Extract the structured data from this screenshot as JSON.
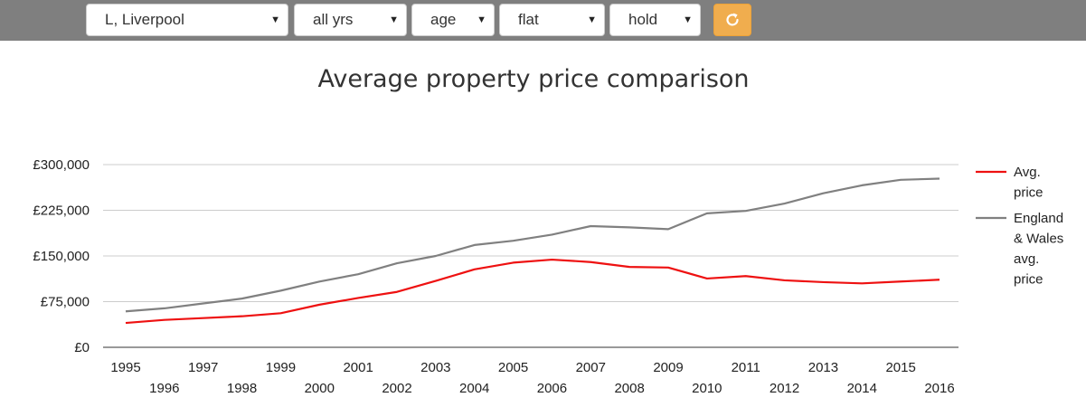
{
  "toolbar": {
    "location": "L, Liverpool",
    "years": "all yrs",
    "age": "age",
    "type": "flat",
    "tenure": "hold",
    "refresh_icon": "refresh-icon",
    "accent": "#f0ad4e",
    "bar_color": "#7f7f7f"
  },
  "chart_data": {
    "type": "line",
    "title": "Average property price comparison",
    "x": [
      "1995",
      "1996",
      "1997",
      "1998",
      "1999",
      "2000",
      "2001",
      "2002",
      "2003",
      "2004",
      "2005",
      "2006",
      "2007",
      "2008",
      "2009",
      "2010",
      "2011",
      "2012",
      "2013",
      "2014",
      "2015",
      "2016"
    ],
    "series": [
      {
        "name": "Avg. price",
        "legend_lines": [
          "Avg.",
          "price"
        ],
        "color": "#ee1111",
        "values": [
          40000,
          45000,
          48000,
          51000,
          56000,
          70000,
          81000,
          91000,
          109000,
          128000,
          139000,
          144000,
          140000,
          132000,
          131000,
          113000,
          117000,
          110000,
          107000,
          105000,
          108000,
          111000
        ]
      },
      {
        "name": "England & Wales avg. price",
        "legend_lines": [
          "England",
          "& Wales",
          "avg.",
          "price"
        ],
        "color": "#808080",
        "values": [
          59000,
          64000,
          72000,
          80000,
          93000,
          108000,
          120000,
          138000,
          150000,
          168000,
          175000,
          185000,
          199000,
          197000,
          194000,
          220000,
          224000,
          236000,
          253000,
          266000,
          275000,
          277000
        ]
      }
    ],
    "y_ticks": [
      "£0",
      "£75,000",
      "£150,000",
      "£225,000",
      "£300,000"
    ],
    "ylim": [
      0,
      300000
    ],
    "grid": true,
    "legend_position": "right"
  }
}
